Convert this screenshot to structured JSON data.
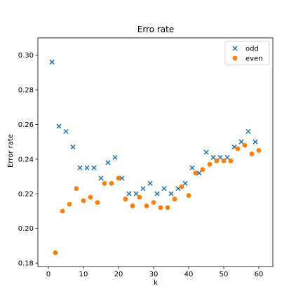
{
  "chart_data": {
    "type": "scatter",
    "title": "Erro rate",
    "xlabel": "k",
    "ylabel": "Error rate",
    "xlim": [
      -3,
      64
    ],
    "ylim": [
      0.178,
      0.31
    ],
    "xticks": [
      0,
      10,
      20,
      30,
      40,
      50,
      60
    ],
    "yticks": [
      0.18,
      0.2,
      0.22,
      0.24,
      0.26,
      0.28,
      0.3
    ],
    "grid": false,
    "legend_position": "top-right",
    "series": [
      {
        "name": "odd",
        "marker": "x",
        "color": "#1f77b4",
        "x": [
          1,
          3,
          5,
          7,
          9,
          11,
          13,
          15,
          17,
          19,
          21,
          23,
          25,
          27,
          29,
          31,
          33,
          35,
          37,
          39,
          41,
          43,
          45,
          47,
          49,
          51,
          53,
          55,
          57,
          59
        ],
        "y": [
          0.296,
          0.259,
          0.256,
          0.247,
          0.235,
          0.235,
          0.235,
          0.229,
          0.238,
          0.241,
          0.229,
          0.22,
          0.22,
          0.223,
          0.226,
          0.22,
          0.223,
          0.22,
          0.223,
          0.226,
          0.235,
          0.232,
          0.244,
          0.241,
          0.241,
          0.241,
          0.247,
          0.25,
          0.256,
          0.25
        ]
      },
      {
        "name": "even",
        "marker": "o",
        "color": "#ff7f0e",
        "x": [
          2,
          4,
          6,
          8,
          10,
          12,
          14,
          16,
          18,
          20,
          22,
          24,
          26,
          28,
          30,
          32,
          34,
          36,
          38,
          40,
          42,
          44,
          46,
          48,
          50,
          52,
          54,
          56,
          58,
          60
        ],
        "y": [
          0.186,
          0.21,
          0.214,
          0.223,
          0.216,
          0.218,
          0.215,
          0.226,
          0.226,
          0.229,
          0.217,
          0.213,
          0.218,
          0.213,
          0.215,
          0.212,
          0.212,
          0.217,
          0.224,
          0.219,
          0.232,
          0.234,
          0.237,
          0.239,
          0.239,
          0.239,
          0.246,
          0.248,
          0.243,
          0.245
        ]
      }
    ]
  }
}
